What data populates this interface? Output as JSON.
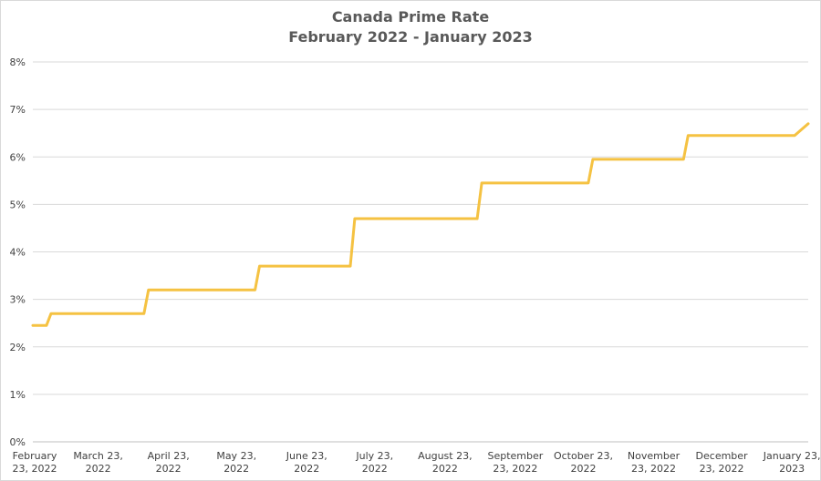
{
  "chart_data": {
    "type": "line",
    "title": "Canada Prime Rate",
    "subtitle": "February 2022 - January 2023",
    "xlabel": "",
    "ylabel": "",
    "ylim": [
      0,
      8
    ],
    "yticks": [
      "0%",
      "1%",
      "2%",
      "3%",
      "4%",
      "5%",
      "6%",
      "7%",
      "8%"
    ],
    "x_tick_labels": [
      [
        "February",
        "23, 2022"
      ],
      [
        "March 23,",
        "2022"
      ],
      [
        "April 23,",
        "2022"
      ],
      [
        "May 23,",
        "2022"
      ],
      [
        "June 23,",
        "2022"
      ],
      [
        "July 23,",
        "2022"
      ],
      [
        "August 23,",
        "2022"
      ],
      [
        "September",
        "23, 2022"
      ],
      [
        "October 23,",
        "2022"
      ],
      [
        "November",
        "23, 2022"
      ],
      [
        "December",
        "23, 2022"
      ],
      [
        "January 23,",
        "2023"
      ]
    ],
    "grid": true,
    "legend": "none",
    "line_color": "#F5C242",
    "series": [
      {
        "points": [
          {
            "date": "2022-02-23",
            "value": 2.45
          },
          {
            "date": "2022-03-01",
            "value": 2.45
          },
          {
            "date": "2022-03-03",
            "value": 2.7
          },
          {
            "date": "2022-04-13",
            "value": 2.7
          },
          {
            "date": "2022-04-15",
            "value": 3.2
          },
          {
            "date": "2022-06-01",
            "value": 3.2
          },
          {
            "date": "2022-06-03",
            "value": 3.7
          },
          {
            "date": "2022-07-13",
            "value": 3.7
          },
          {
            "date": "2022-07-15",
            "value": 4.7
          },
          {
            "date": "2022-09-07",
            "value": 4.7
          },
          {
            "date": "2022-09-09",
            "value": 5.45
          },
          {
            "date": "2022-10-26",
            "value": 5.45
          },
          {
            "date": "2022-10-28",
            "value": 5.95
          },
          {
            "date": "2022-12-07",
            "value": 5.95
          },
          {
            "date": "2022-12-09",
            "value": 6.45
          },
          {
            "date": "2023-01-25",
            "value": 6.45
          },
          {
            "date": "2023-01-31",
            "value": 6.7
          }
        ]
      }
    ]
  }
}
